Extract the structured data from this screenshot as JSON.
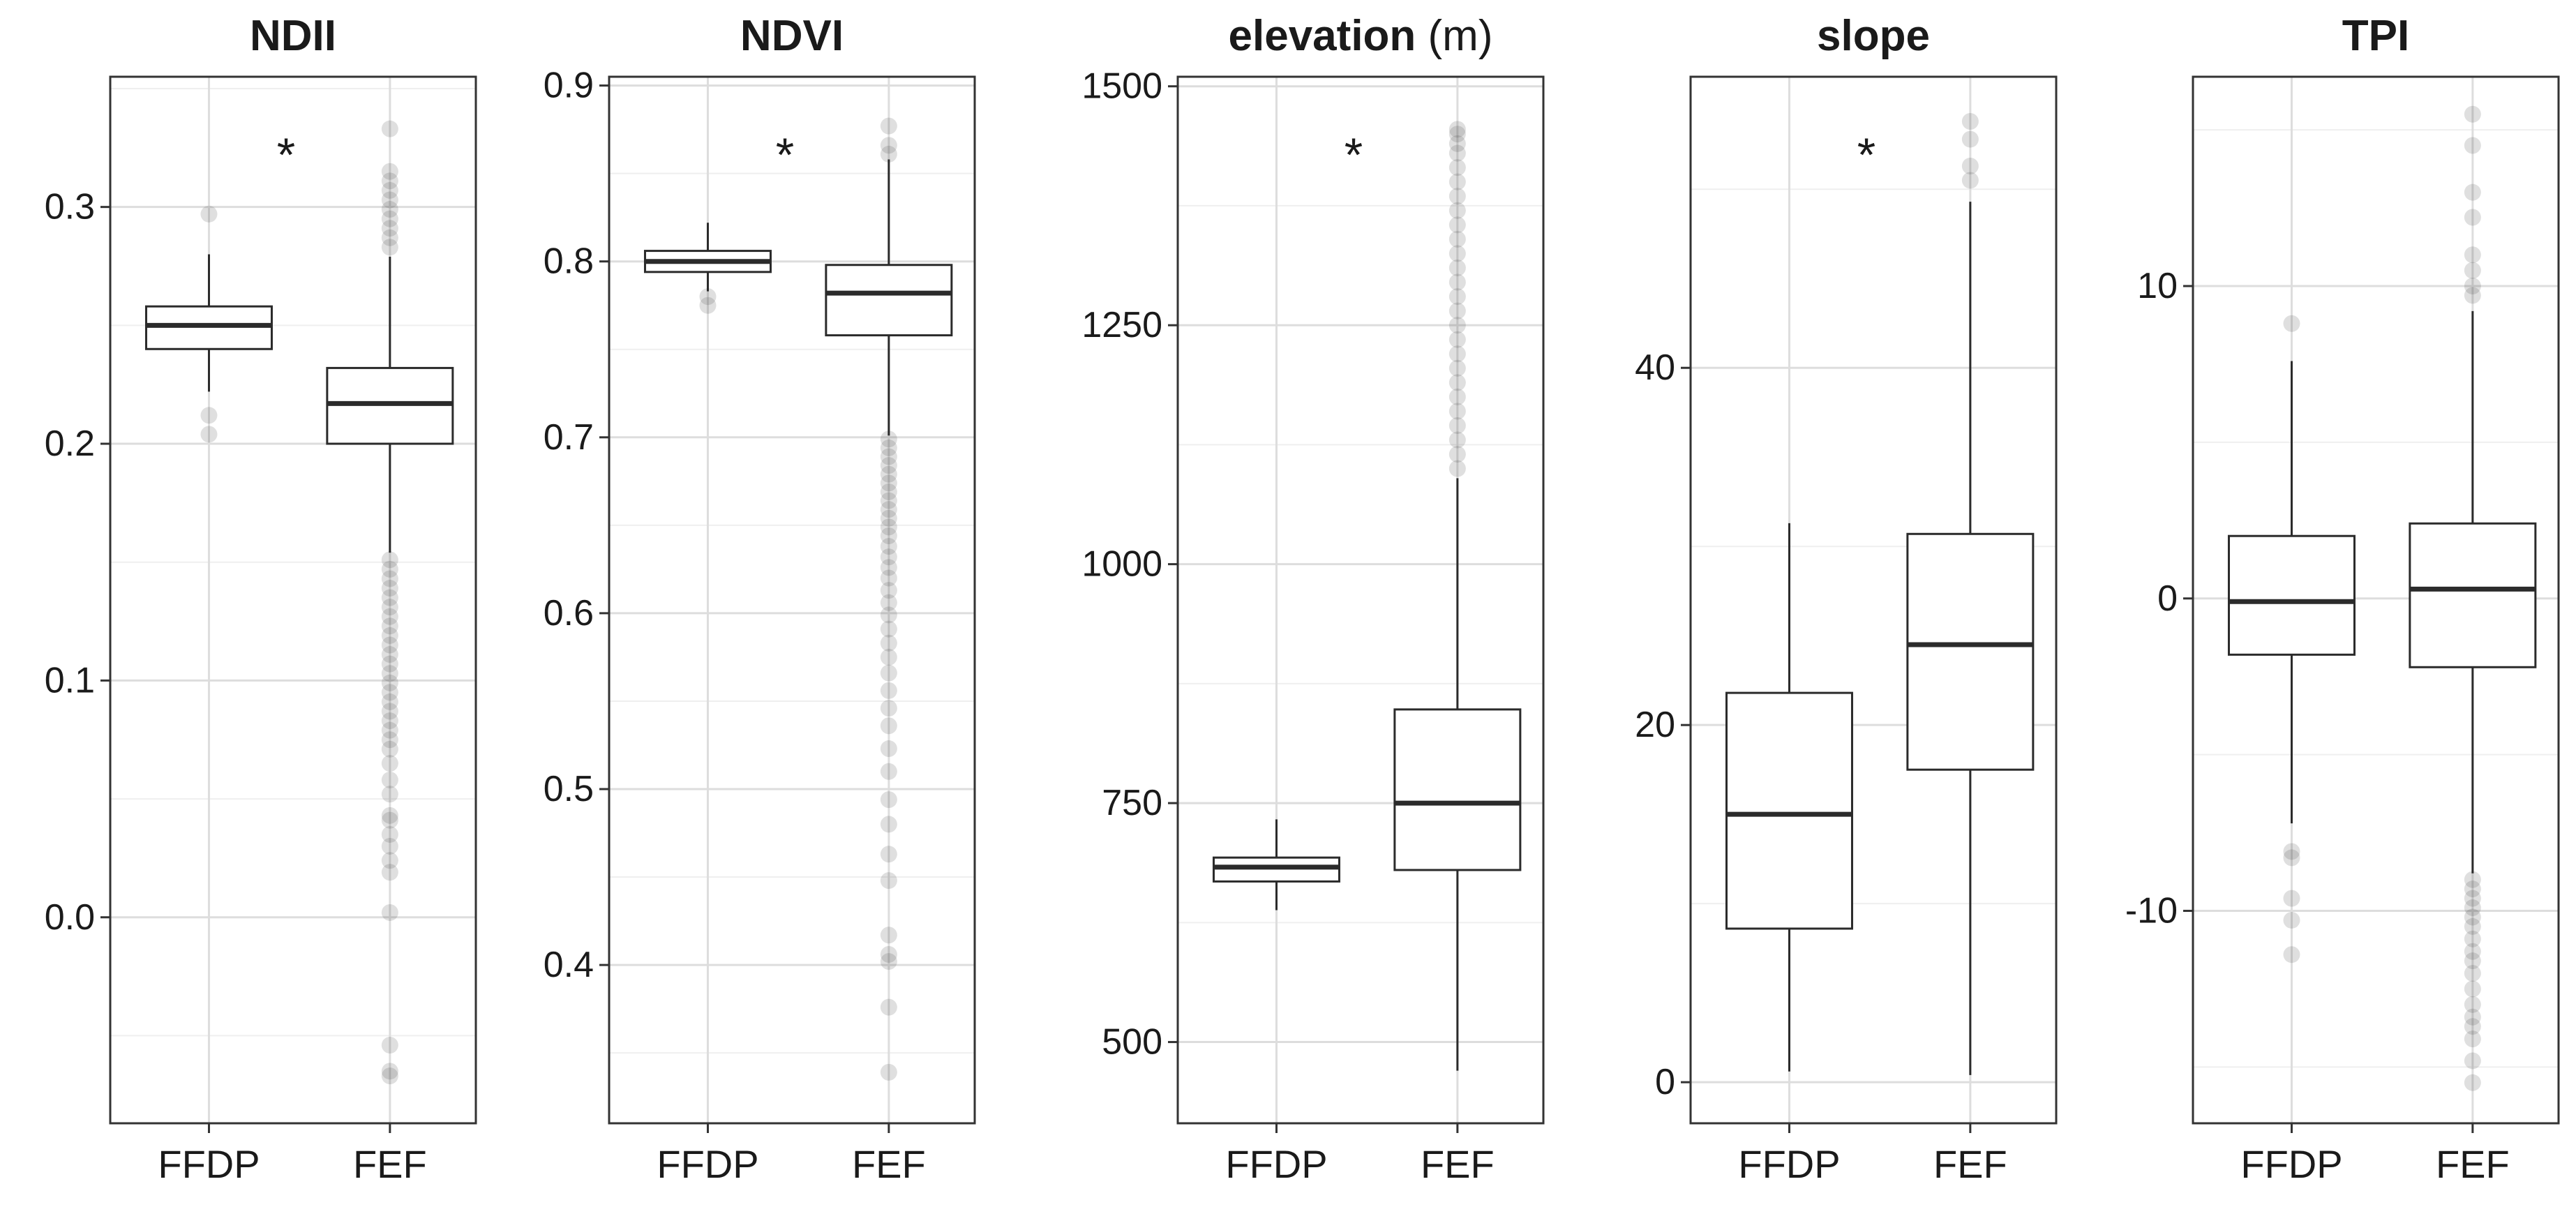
{
  "chart_data": [
    {
      "type": "box",
      "title": "NDII",
      "unit": "",
      "significance": "*",
      "categories": [
        "FFDP",
        "FEF"
      ],
      "ylim": [
        -0.087,
        0.355
      ],
      "yticks": [
        0.0,
        0.1,
        0.2,
        0.3
      ],
      "ytick_labels": [
        "0.0",
        "0.1",
        "0.2",
        "0.3"
      ],
      "boxes": [
        {
          "name": "FFDP",
          "q1": 0.24,
          "median": 0.25,
          "q3": 0.258,
          "whisker_low": 0.222,
          "whisker_high": 0.28,
          "outliers": [
            0.297,
            0.212,
            0.204
          ]
        },
        {
          "name": "FEF",
          "q1": 0.2,
          "median": 0.217,
          "q3": 0.232,
          "whisker_low": 0.154,
          "whisker_high": 0.279,
          "outliers": [
            0.333,
            0.315,
            0.311,
            0.307,
            0.303,
            0.299,
            0.295,
            0.291,
            0.287,
            0.283,
            0.151,
            0.147,
            0.143,
            0.139,
            0.135,
            0.131,
            0.127,
            0.123,
            0.119,
            0.115,
            0.111,
            0.107,
            0.103,
            0.099,
            0.095,
            0.091,
            0.087,
            0.083,
            0.079,
            0.075,
            0.071,
            0.065,
            0.058,
            0.052,
            0.043,
            0.041,
            0.035,
            0.03,
            0.024,
            0.019,
            0.002,
            -0.054,
            -0.065,
            -0.067
          ]
        }
      ]
    },
    {
      "type": "box",
      "title": "NDVI",
      "unit": "",
      "significance": "*",
      "categories": [
        "FFDP",
        "FEF"
      ],
      "ylim": [
        0.31,
        0.905
      ],
      "yticks": [
        0.4,
        0.5,
        0.6,
        0.7,
        0.8,
        0.9
      ],
      "ytick_labels": [
        "0.4",
        "0.5",
        "0.6",
        "0.7",
        "0.8",
        "0.9"
      ],
      "boxes": [
        {
          "name": "FFDP",
          "q1": 0.794,
          "median": 0.8,
          "q3": 0.806,
          "whisker_low": 0.783,
          "whisker_high": 0.822,
          "outliers": [
            0.78,
            0.775
          ]
        },
        {
          "name": "FEF",
          "q1": 0.758,
          "median": 0.782,
          "q3": 0.798,
          "whisker_low": 0.701,
          "whisker_high": 0.858,
          "outliers": [
            0.877,
            0.866,
            0.861,
            0.699,
            0.694,
            0.689,
            0.684,
            0.679,
            0.674,
            0.669,
            0.664,
            0.659,
            0.654,
            0.649,
            0.644,
            0.638,
            0.632,
            0.626,
            0.62,
            0.613,
            0.606,
            0.599,
            0.591,
            0.583,
            0.575,
            0.566,
            0.556,
            0.546,
            0.536,
            0.523,
            0.51,
            0.494,
            0.48,
            0.463,
            0.448,
            0.417,
            0.406,
            0.402,
            0.376,
            0.339
          ]
        }
      ]
    },
    {
      "type": "box",
      "title": "elevation",
      "unit": "(m)",
      "significance": "*",
      "categories": [
        "FFDP",
        "FEF"
      ],
      "ylim": [
        415,
        1510
      ],
      "yticks": [
        500,
        750,
        1000,
        1250,
        1500
      ],
      "ytick_labels": [
        "500",
        "750",
        "1000",
        "1250",
        "1500"
      ],
      "boxes": [
        {
          "name": "FFDP",
          "q1": 668,
          "median": 683,
          "q3": 693,
          "whisker_low": 638,
          "whisker_high": 733,
          "outliers": []
        },
        {
          "name": "FEF",
          "q1": 680,
          "median": 750,
          "q3": 848,
          "whisker_low": 470,
          "whisker_high": 1090,
          "outliers": [
            1100,
            1115,
            1130,
            1145,
            1160,
            1175,
            1190,
            1205,
            1220,
            1235,
            1250,
            1265,
            1280,
            1295,
            1310,
            1325,
            1340,
            1355,
            1370,
            1385,
            1400,
            1415,
            1430,
            1440,
            1450,
            1455
          ]
        }
      ]
    },
    {
      "type": "box",
      "title": "slope",
      "unit": "",
      "significance": "*",
      "categories": [
        "FFDP",
        "FEF"
      ],
      "ylim": [
        -2.3,
        56.3
      ],
      "yticks": [
        0,
        20,
        40
      ],
      "ytick_labels": [
        "0",
        "20",
        "40"
      ],
      "boxes": [
        {
          "name": "FFDP",
          "q1": 8.6,
          "median": 15.0,
          "q3": 21.8,
          "whisker_low": 0.6,
          "whisker_high": 31.3,
          "outliers": []
        },
        {
          "name": "FEF",
          "q1": 17.5,
          "median": 24.5,
          "q3": 30.7,
          "whisker_low": 0.4,
          "whisker_high": 49.3,
          "outliers": [
            50.5,
            51.3,
            52.8,
            53.8
          ]
        }
      ]
    },
    {
      "type": "box",
      "title": "TPI",
      "unit": "",
      "significance": "",
      "categories": [
        "FFDP",
        "FEF"
      ],
      "ylim": [
        -16.8,
        16.7
      ],
      "yticks": [
        -10,
        0,
        10
      ],
      "ytick_labels": [
        "-10",
        "0",
        "10"
      ],
      "boxes": [
        {
          "name": "FFDP",
          "q1": -1.8,
          "median": -0.1,
          "q3": 2.0,
          "whisker_low": -7.2,
          "whisker_high": 7.6,
          "outliers": [
            8.8,
            -8.1,
            -8.3,
            -9.6,
            -10.3,
            -11.4
          ]
        },
        {
          "name": "FEF",
          "q1": -2.2,
          "median": 0.3,
          "q3": 2.4,
          "whisker_low": -8.8,
          "whisker_high": 9.2,
          "outliers": [
            15.5,
            14.5,
            13.0,
            12.2,
            11.0,
            10.5,
            10.0,
            9.7,
            -9.0,
            -9.3,
            -9.6,
            -9.9,
            -10.2,
            -10.5,
            -10.9,
            -11.3,
            -11.6,
            -12.0,
            -12.5,
            -13.0,
            -13.4,
            -13.7,
            -14.1,
            -14.8,
            -15.5
          ]
        }
      ]
    }
  ]
}
